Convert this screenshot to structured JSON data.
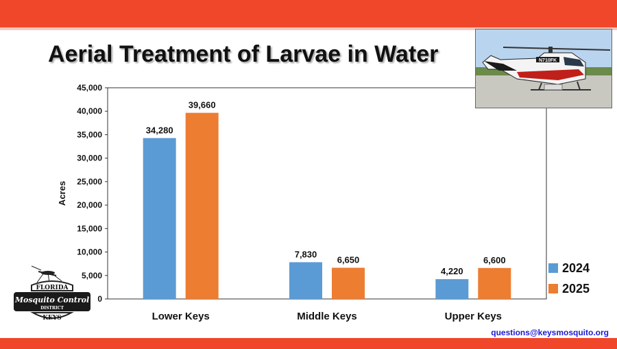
{
  "slide": {
    "title": "Aerial Treatment of Larvae in Water",
    "email": "questions@keysmosquito.org"
  },
  "colors": {
    "accent_bar": "#f0472a",
    "series_2024": "#5b9bd5",
    "series_2025": "#ed7d31"
  },
  "photo": {
    "tail_number": "N710FK"
  },
  "logo": {
    "line1": "FLORIDA",
    "line2": "Mosquito Control",
    "line3": "DISTRICT",
    "line4": "KEYS"
  },
  "chart_data": {
    "type": "bar",
    "title": "Aerial Treatment of Larvae in Water",
    "categories": [
      "Lower Keys",
      "Middle Keys",
      "Upper Keys"
    ],
    "series": [
      {
        "name": "2024",
        "values": [
          34280,
          7830,
          4220
        ],
        "labels": [
          "34,280",
          "7,830",
          "4,220"
        ]
      },
      {
        "name": "2025",
        "values": [
          39660,
          6650,
          6600
        ],
        "labels": [
          "39,660",
          "6,650",
          "6,600"
        ]
      }
    ],
    "xlabel": "",
    "ylabel": "Acres",
    "ylim": [
      0,
      45000
    ],
    "yticks": [
      0,
      5000,
      10000,
      15000,
      20000,
      25000,
      30000,
      35000,
      40000,
      45000
    ],
    "ytick_labels": [
      "0",
      "5,000",
      "10,000",
      "15,000",
      "20,000",
      "25,000",
      "30,000",
      "35,000",
      "40,000",
      "45,000"
    ],
    "grid": false,
    "legend": "bottom-right"
  }
}
